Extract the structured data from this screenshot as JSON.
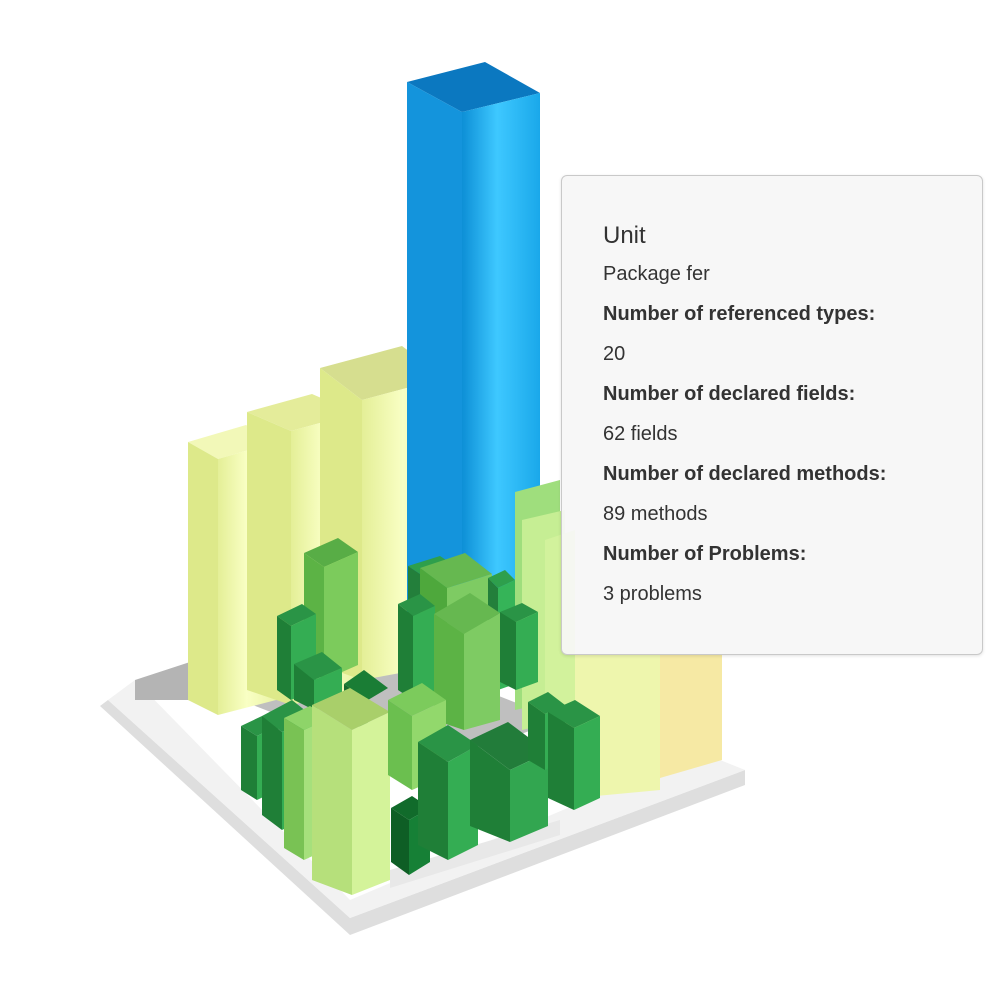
{
  "tooltip": {
    "title": "Unit",
    "subtitle": "Package fer",
    "metrics": [
      {
        "label": "Number of referenced types:",
        "value": "20"
      },
      {
        "label": "Number of declared fields:",
        "value": "62 fields"
      },
      {
        "label": "Number of declared methods:",
        "value": "89 methods"
      },
      {
        "label": "Number of Problems:",
        "value": "3 problems"
      }
    ]
  },
  "colors": {
    "highlighted_bar": "#19a7e6",
    "light_yellow_bar": "#eef7a6",
    "light_green_bar": "#8fd66f",
    "medium_green_bar": "#35b458",
    "dark_green_bar": "#1a8a3c",
    "base_platform": "#ededed",
    "base_shadow": "#b4b4b4"
  }
}
